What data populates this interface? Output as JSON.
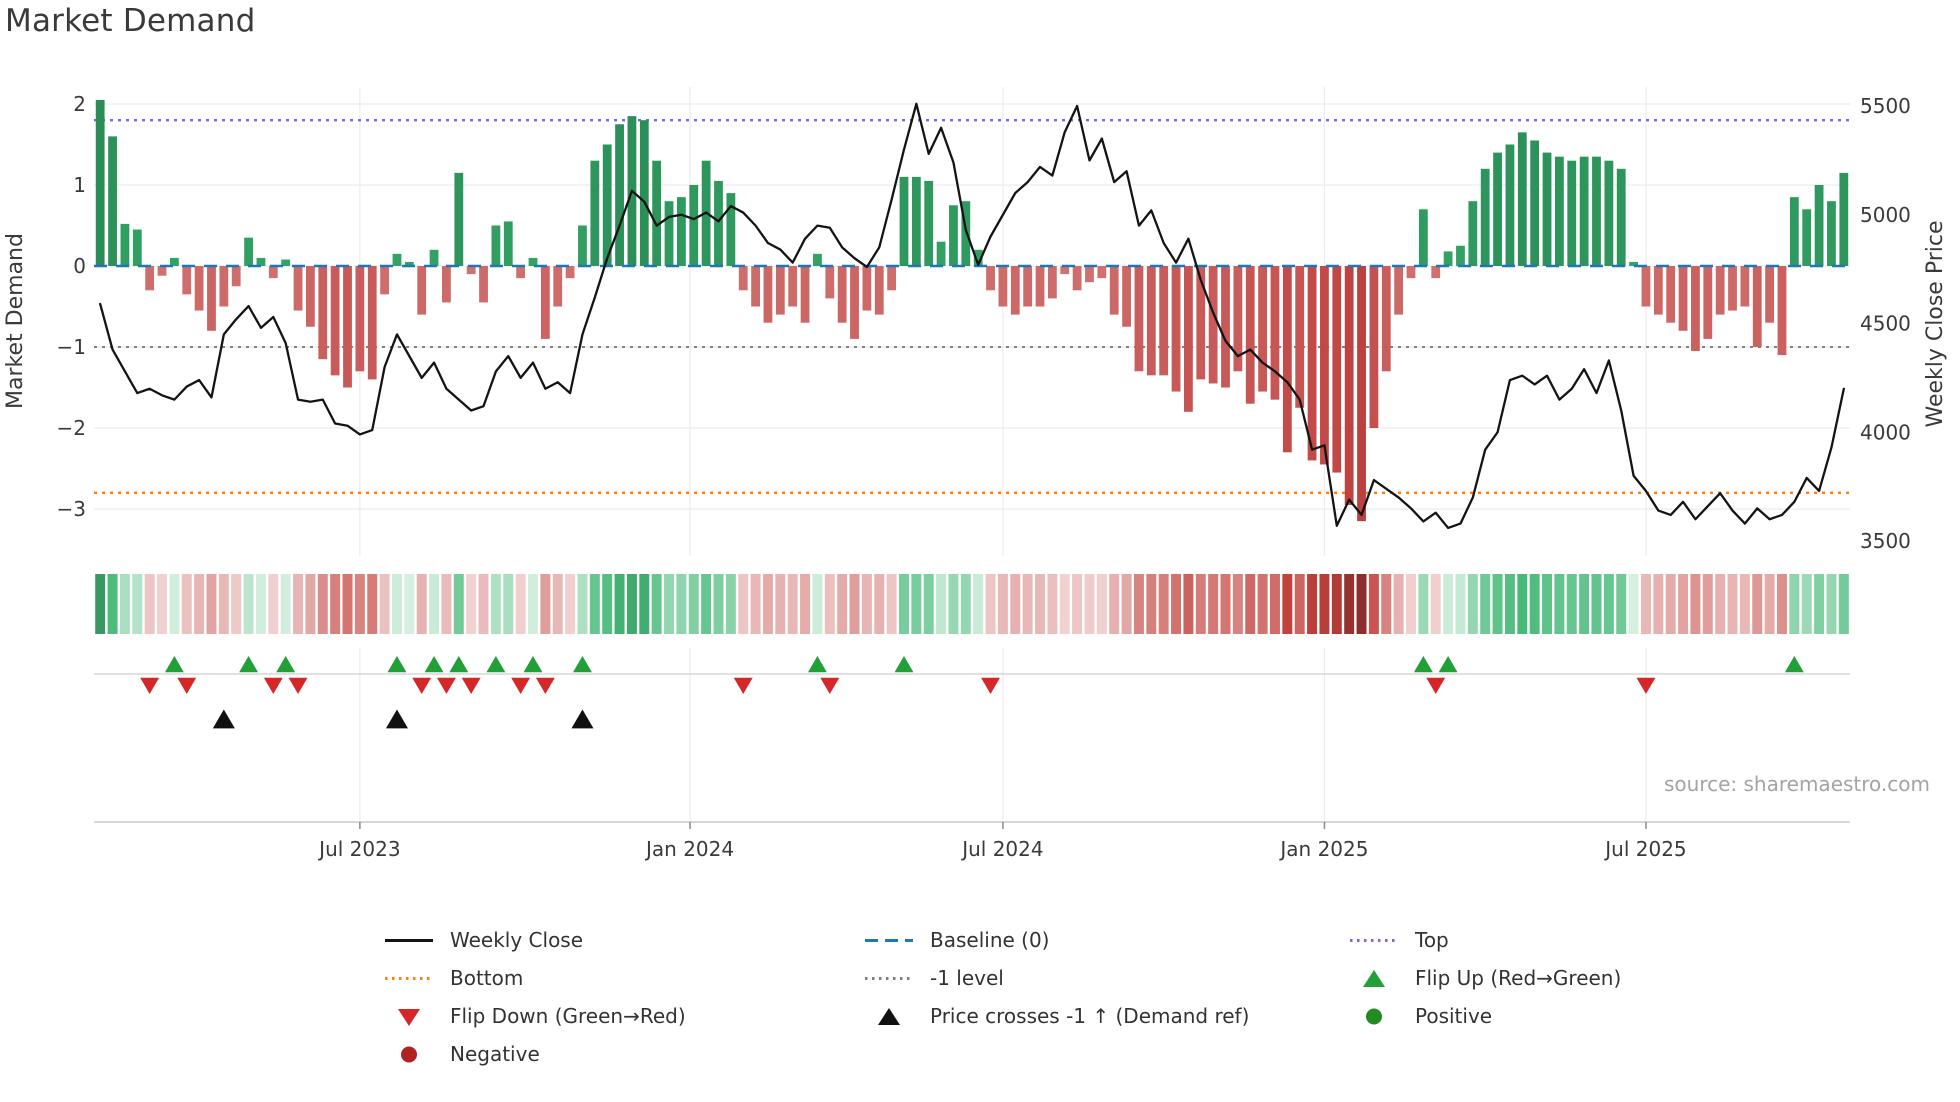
{
  "title": "Market Demand",
  "source": "source: sharemaestro.com",
  "axes": {
    "left_label": "Market Demand",
    "right_label": "Weekly Close Price",
    "left_ticks": [
      2,
      1,
      0,
      -1,
      -2,
      -3
    ],
    "right_ticks": [
      5500,
      5000,
      4500,
      4000,
      3500
    ],
    "x_ticks": [
      {
        "label": "Jul 2023",
        "week": 21
      },
      {
        "label": "Jan 2024",
        "week": 47.7
      },
      {
        "label": "Jul 2024",
        "week": 73
      },
      {
        "label": "Jan 2025",
        "week": 99
      },
      {
        "label": "Jul 2025",
        "week": 125
      }
    ]
  },
  "colors": {
    "line": "#141414",
    "baseline": "#1f77b4",
    "top_level": "#6e6ed8",
    "bottom_level": "#ff7f0e",
    "minus_one_level": "#7f7f7f",
    "flip_up": "#21a038",
    "flip_down": "#d62728",
    "price_cross": "#111111",
    "positive_dot": "#228b22",
    "negative_dot": "#b22222",
    "grid": "#ececec",
    "axis_text": "#3a3a3a",
    "source_text": "#a3a3a3",
    "panel_line": "#cfcfcf",
    "axis_line": "#c8c8c8"
  },
  "legend": {
    "columns": [
      [
        {
          "label": "Weekly Close",
          "type": "line-solid",
          "color": "#141414"
        },
        {
          "label": "Bottom",
          "type": "line-dotted",
          "color": "#ff7f0e"
        },
        {
          "label": "Flip Down (Green→Red)",
          "type": "tri-down",
          "color": "#d62728"
        },
        {
          "label": "Negative",
          "type": "circle",
          "color": "#b22222"
        }
      ],
      [
        {
          "label": "Baseline (0)",
          "type": "line-dashed",
          "color": "#1f77b4"
        },
        {
          "label": "-1 level",
          "type": "line-dotted",
          "color": "#7f7f7f"
        },
        {
          "label": "Price crosses -1 ↑ (Demand ref)",
          "type": "tri-up",
          "color": "#111111"
        }
      ],
      [
        {
          "label": "Top",
          "type": "line-dotted",
          "color": "#6e6ed8"
        },
        {
          "label": "Flip Up (Red→Green)",
          "type": "tri-up",
          "color": "#21a038"
        },
        {
          "label": "Positive",
          "type": "circle",
          "color": "#228b22"
        }
      ]
    ]
  },
  "chart_data": {
    "type": "bar+line combo with heatmap strip and event markers",
    "title": "Market Demand",
    "frequency": "weekly",
    "x_start_date": "2023-02-06",
    "n_weeks": 142,
    "xlabel": "",
    "ylabel_left": "Market Demand",
    "ylabel_right": "Weekly Close Price",
    "demand_ylim": [
      -3.58,
      2.21
    ],
    "price_ylim": [
      3500,
      5500
    ],
    "grid": true,
    "legend_position": "bottom",
    "levels": {
      "top": 1.8,
      "baseline": 0,
      "minus_one": -1,
      "bottom": -2.8
    },
    "demand": [
      2.05,
      1.6,
      0.52,
      0.45,
      -0.3,
      -0.12,
      0.1,
      -0.35,
      -0.55,
      -0.8,
      -0.5,
      -0.25,
      0.35,
      0.1,
      -0.15,
      0.08,
      -0.55,
      -0.75,
      -1.15,
      -1.35,
      -1.5,
      -1.3,
      -1.4,
      -0.35,
      0.15,
      0.05,
      -0.6,
      0.2,
      -0.45,
      1.15,
      -0.1,
      -0.45,
      0.5,
      0.55,
      -0.15,
      0.1,
      -0.9,
      -0.5,
      -0.15,
      0.5,
      1.3,
      1.5,
      1.75,
      1.85,
      1.8,
      1.3,
      0.8,
      0.85,
      1.0,
      1.3,
      1.05,
      0.9,
      -0.3,
      -0.5,
      -0.7,
      -0.6,
      -0.5,
      -0.7,
      0.15,
      -0.4,
      -0.7,
      -0.9,
      -0.55,
      -0.6,
      -0.3,
      1.1,
      1.1,
      1.05,
      0.3,
      0.75,
      0.8,
      0.2,
      -0.3,
      -0.5,
      -0.6,
      -0.5,
      -0.5,
      -0.4,
      -0.1,
      -0.3,
      -0.2,
      -0.15,
      -0.6,
      -0.75,
      -1.3,
      -1.35,
      -1.35,
      -1.55,
      -1.8,
      -1.4,
      -1.45,
      -1.5,
      -1.3,
      -1.7,
      -1.55,
      -1.65,
      -2.3,
      -1.75,
      -2.4,
      -2.45,
      -2.55,
      -2.95,
      -3.15,
      -2.0,
      -1.3,
      -0.6,
      -0.15,
      0.7,
      -0.15,
      0.18,
      0.25,
      0.8,
      1.2,
      1.4,
      1.5,
      1.65,
      1.55,
      1.4,
      1.35,
      1.3,
      1.35,
      1.35,
      1.3,
      1.2,
      0.05,
      -0.5,
      -0.6,
      -0.7,
      -0.8,
      -1.05,
      -0.9,
      -0.6,
      -0.55,
      -0.5,
      -1.0,
      -0.7,
      -1.1,
      0.85,
      0.7,
      1.0,
      0.8,
      1.15
    ],
    "price": [
      4590,
      4380,
      4280,
      4180,
      4200,
      4170,
      4150,
      4210,
      4240,
      4160,
      4450,
      4520,
      4580,
      4480,
      4530,
      4410,
      4150,
      4140,
      4150,
      4040,
      4030,
      3990,
      4010,
      4300,
      4450,
      4350,
      4250,
      4320,
      4200,
      4150,
      4100,
      4120,
      4280,
      4350,
      4250,
      4320,
      4200,
      4230,
      4180,
      4450,
      4620,
      4800,
      4950,
      5110,
      5060,
      4950,
      4990,
      5000,
      4980,
      5010,
      4970,
      5040,
      5010,
      4950,
      4870,
      4840,
      4780,
      4890,
      4950,
      4940,
      4850,
      4800,
      4760,
      4850,
      5070,
      5300,
      5510,
      5280,
      5400,
      5240,
      4930,
      4770,
      4900,
      5000,
      5100,
      5150,
      5220,
      5180,
      5380,
      5500,
      5250,
      5350,
      5150,
      5200,
      4950,
      5020,
      4870,
      4780,
      4890,
      4700,
      4550,
      4420,
      4350,
      4380,
      4320,
      4280,
      4230,
      4150,
      3920,
      3940,
      3570,
      3690,
      3620,
      3780,
      3740,
      3700,
      3650,
      3590,
      3630,
      3560,
      3580,
      3700,
      3920,
      4000,
      4240,
      4260,
      4220,
      4260,
      4150,
      4200,
      4290,
      4180,
      4330,
      4100,
      3800,
      3730,
      3640,
      3620,
      3680,
      3600,
      3660,
      3720,
      3640,
      3580,
      3650,
      3600,
      3620,
      3680,
      3790,
      3730,
      3930,
      4200
    ],
    "flip_up_weeks": [
      6,
      12,
      15,
      24,
      27,
      29,
      32,
      35,
      39,
      58,
      65,
      107,
      109,
      137
    ],
    "flip_down_weeks": [
      4,
      7,
      14,
      16,
      26,
      28,
      30,
      34,
      36,
      52,
      59,
      72,
      108,
      125
    ],
    "price_cross_minus1_weeks": [
      10,
      24,
      39
    ],
    "heatmap": "demand values repeated as a red/green intensity strip"
  }
}
